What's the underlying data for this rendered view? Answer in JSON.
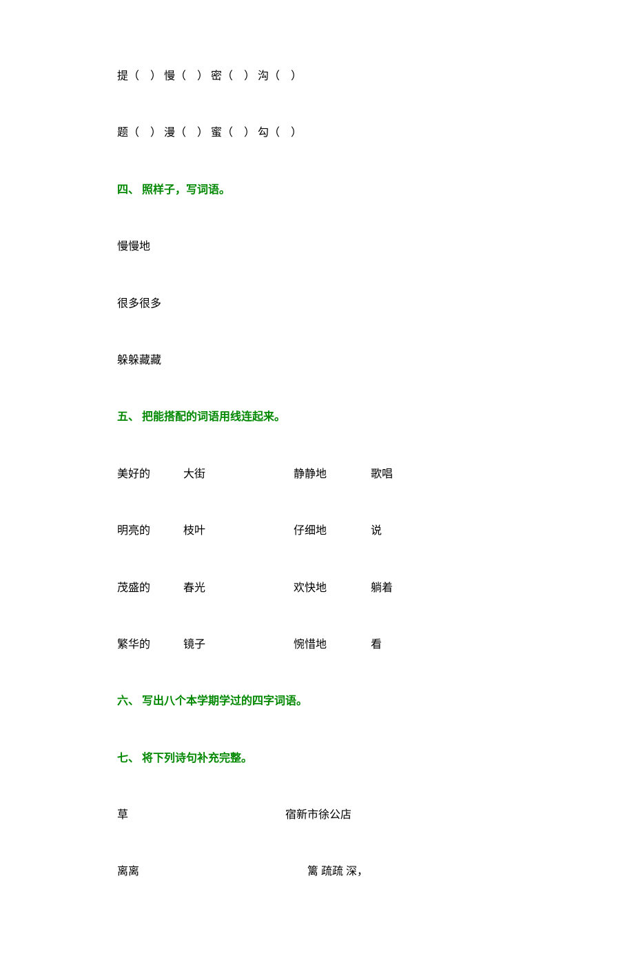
{
  "colors": {
    "text": "#000000",
    "heading": "#008800",
    "background": "#ffffff"
  },
  "typography": {
    "font_family": "SimSun",
    "base_fontsize_pt": 12,
    "heading_fontweight": "bold"
  },
  "section3": {
    "rows": [
      "提（　）  慢（　）  密（　）  沟（　）",
      "题（　）  漫（　）  蜜（　）  勾（　）"
    ]
  },
  "section4": {
    "heading": "四、  照样子，写词语。",
    "items": [
      "慢慢地",
      "很多很多",
      "躲躲藏藏"
    ]
  },
  "section5": {
    "heading": "五、  把能搭配的词语用线连起来。",
    "rows": [
      {
        "a": "美好的",
        "b": "大街",
        "c": "静静地",
        "d": "歌唱"
      },
      {
        "a": "明亮的",
        "b": "枝叶",
        "c": "仔细地",
        "d": "说"
      },
      {
        "a": "茂盛的",
        "b": "春光",
        "c": "欢快地",
        "d": "躺着"
      },
      {
        "a": "繁华的",
        "b": "镜子",
        "c": "惋惜地",
        "d": "看"
      }
    ]
  },
  "section6": {
    "heading": "六、  写出八个本学期学过的四字词语。"
  },
  "section7": {
    "heading": "七、  将下列诗句补充完整。",
    "poem_titles": {
      "left": "草",
      "right": "宿新市徐公店"
    },
    "poem_lines": {
      "left": "离离",
      "right": "篱  疏疏    深，"
    }
  }
}
